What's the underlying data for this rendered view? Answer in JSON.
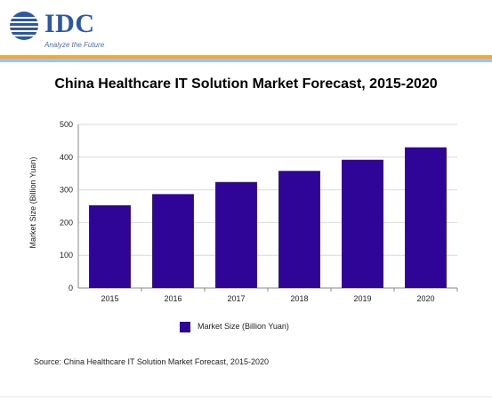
{
  "header": {
    "logo_text": "IDC",
    "tagline": "Analyze the Future"
  },
  "colors": {
    "bar": "#2e0596",
    "grid": "#d9d9d9",
    "axis": "#888888",
    "brand_blue": "#2a58a8",
    "stripe_orange": "#f3a833",
    "stripe_blue": "#9cc5e9"
  },
  "chart_data": {
    "type": "bar",
    "title": "China Healthcare IT Solution Market Forecast, 2015-2020",
    "xlabel": "",
    "ylabel": "Market Size (Billion Yuan)",
    "categories": [
      "2015",
      "2016",
      "2017",
      "2018",
      "2019",
      "2020"
    ],
    "series": [
      {
        "name": "Market Size (Billion Yuan)",
        "values": [
          253,
          287,
          324,
          358,
          392,
          430
        ]
      }
    ],
    "ylim": [
      0,
      500
    ],
    "yticks": [
      "0",
      "100",
      "200",
      "300",
      "400",
      "500"
    ],
    "grid": true,
    "legend_position": "bottom"
  },
  "footer": {
    "source": "Source: China Healthcare IT Solution Market Forecast, 2015-2020"
  }
}
